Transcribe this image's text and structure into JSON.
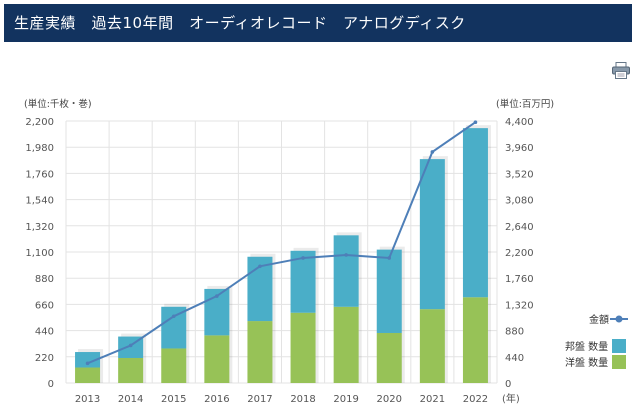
{
  "page": {
    "title": "生産実績　過去10年間　オーディオレコード　アナログディスク"
  },
  "toolbar": {
    "print_icon": "printer-icon"
  },
  "colors": {
    "domestic": "#4aaec8",
    "foreign": "#97c257",
    "line": "#4e7fb8",
    "title_bg": "#12335f"
  },
  "chart_data": {
    "type": "bar",
    "stacked": true,
    "categories": [
      "2013",
      "2014",
      "2015",
      "2016",
      "2017",
      "2018",
      "2019",
      "2020",
      "2021",
      "2022"
    ],
    "series": [
      {
        "name": "洋盤 数量",
        "axis": "left",
        "values": [
          130,
          210,
          290,
          400,
          520,
          590,
          640,
          420,
          620,
          720
        ]
      },
      {
        "name": "邦盤 数量",
        "axis": "left",
        "values": [
          130,
          180,
          350,
          390,
          540,
          520,
          600,
          700,
          1260,
          1420
        ]
      },
      {
        "name": "金額",
        "type": "line",
        "axis": "right",
        "values": [
          330,
          630,
          1120,
          1460,
          1960,
          2100,
          2150,
          2100,
          3880,
          4380
        ]
      }
    ],
    "y_left": {
      "label": "(単位:千枚・巻)",
      "ticks": [
        "0",
        "220",
        "440",
        "660",
        "880",
        "1,100",
        "1,320",
        "1,540",
        "1,760",
        "1,980",
        "2,200"
      ],
      "ylim": [
        0,
        2200
      ]
    },
    "y_right": {
      "label": "(単位:百万円)",
      "ticks": [
        "0",
        "440",
        "880",
        "1,320",
        "1,760",
        "2,200",
        "2,640",
        "3,080",
        "3,520",
        "3,960",
        "4,400"
      ],
      "ylim": [
        0,
        4400
      ]
    },
    "x_unit": "(年)",
    "legend": [
      "金額",
      "邦盤 数量",
      "洋盤 数量"
    ],
    "legend_position": "right",
    "grid": true
  }
}
